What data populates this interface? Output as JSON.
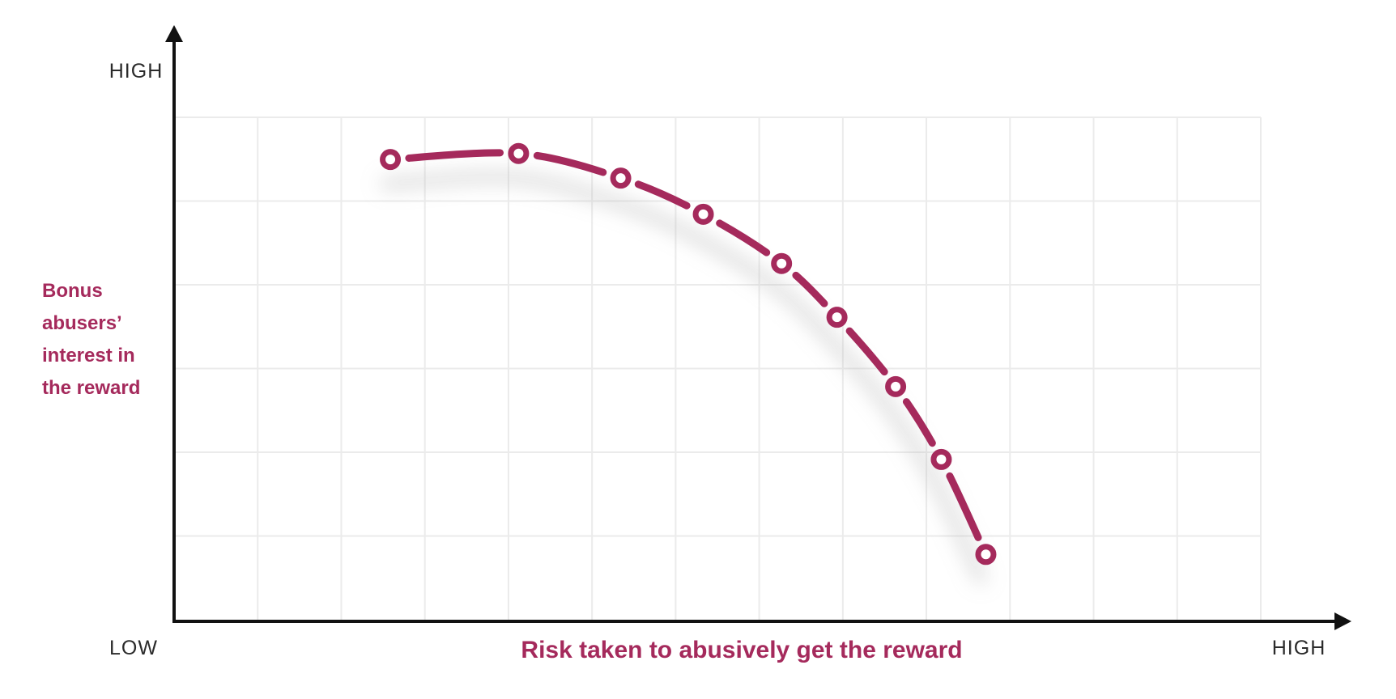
{
  "chart_labels": {
    "y_axis_top": "HIGH",
    "x_axis_left": "LOW",
    "x_axis_right": "HIGH",
    "y_title_lines": [
      "Bonus",
      "abusers’",
      "interest in",
      "the reward"
    ],
    "x_title": "Risk taken to abusively get the reward"
  },
  "colors": {
    "accent": "#A52A5C",
    "axis": "#111111",
    "grid": "#ebebeb",
    "label": "#2b2b2b",
    "shadow": "#b0b0b0",
    "background": "#ffffff"
  },
  "chart_data": {
    "type": "line",
    "line_style": "dashed",
    "marker": "open-circle",
    "title": "",
    "xlabel": "Risk taken to abusively get the reward",
    "ylabel": "Bonus abusers’ interest in the reward",
    "x_range_labels": {
      "min": "LOW",
      "max": "HIGH"
    },
    "y_range_labels": {
      "max": "HIGH"
    },
    "axis_scale": "relative 0–100 between LOW and HIGH (no numeric ticks shown)",
    "xlim": [
      0,
      100
    ],
    "ylim": [
      0,
      100
    ],
    "grid": {
      "visible": true,
      "rows": 6,
      "cols": 13
    },
    "series": [
      {
        "name": "interest_curve",
        "points": [
          [
            19.9,
            91.6
          ],
          [
            31.7,
            92.8
          ],
          [
            41.1,
            87.9
          ],
          [
            48.7,
            80.7
          ],
          [
            55.9,
            70.9
          ],
          [
            61.0,
            60.2
          ],
          [
            66.4,
            46.4
          ],
          [
            70.6,
            31.9
          ],
          [
            74.7,
            13.0
          ]
        ]
      }
    ]
  }
}
